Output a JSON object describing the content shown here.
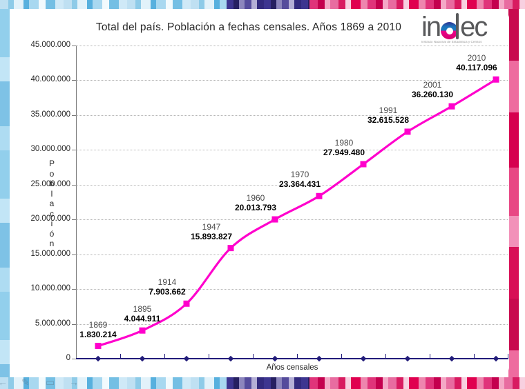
{
  "title": "Total del país. Población a fechas censales. Años 1869 a 2010",
  "logo": {
    "word": "indec",
    "word_left": "in",
    "word_right": "ec",
    "subtitle": "Instituto Nacional de Estadística y Censos",
    "circle_top_color": "#1b75bc",
    "circle_bottom_color": "#ec008c"
  },
  "chart_data": {
    "type": "line",
    "title": "Total del país. Población a fechas censales. Años 1869 a 2010",
    "xlabel": "Años censales",
    "ylabel": "Población",
    "categories": [
      "1869",
      "1895",
      "1914",
      "1947",
      "1960",
      "1970",
      "1980",
      "1991",
      "2001",
      "2010"
    ],
    "values": [
      1830214,
      4044911,
      7903662,
      15893827,
      20013793,
      23364431,
      27949480,
      32615528,
      36260130,
      40117096
    ],
    "value_labels": [
      "1.830.214",
      "4.044.911",
      "7.903.662",
      "15.893.827",
      "20.013.793",
      "23.364.431",
      "27.949.480",
      "32.615.528",
      "36.260.130",
      "40.117.096"
    ],
    "ylim": [
      0,
      45000000
    ],
    "ytick_interval": 5000000,
    "ytick_labels": [
      "0",
      "5.000.000",
      "10.000.000",
      "15.000.000",
      "20.000.000",
      "25.000.000",
      "30.000.000",
      "35.000.000",
      "40.000.000",
      "45.000.000"
    ],
    "grid": "horizontal-dotted",
    "legend": "none",
    "line_color": "#ff00cc",
    "marker": "square",
    "axis_color": "#221c7a"
  },
  "slideshow_controls": {
    "back": "←",
    "pen": "✎",
    "menu": "▭",
    "forward": "→"
  }
}
